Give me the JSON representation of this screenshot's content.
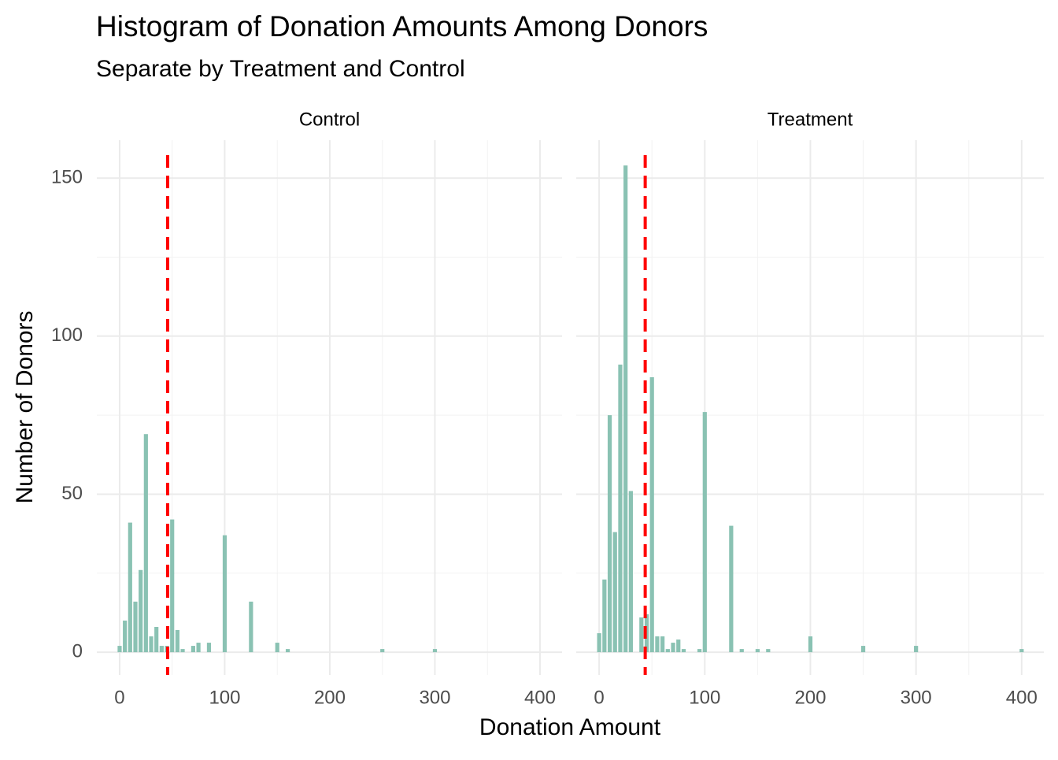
{
  "chart_data": {
    "type": "histogram",
    "title": "Histogram of Donation Amounts Among Donors",
    "subtitle": "Separate by Treatment and Control",
    "x_label": "Donation Amount",
    "y_label": "Number of Donors",
    "color": "#8ac2b3",
    "line_color": "#ff0000",
    "grid": true,
    "xlim": [
      -21.7,
      421
    ],
    "ylim": [
      -7.2,
      162
    ],
    "xticks": [
      0,
      100,
      200,
      300,
      400
    ],
    "yticks": [
      0,
      50,
      100,
      150
    ],
    "minor_xticks": [
      50,
      150,
      250,
      350
    ],
    "minor_yticks": [
      25,
      75,
      125
    ],
    "bins": [
      -2.5,
      2.5,
      7.5,
      12.5,
      17.5,
      22.5,
      27.5,
      32.5,
      37.5,
      42.5,
      47.5,
      52.5,
      57.5,
      62.5,
      67.5,
      72.5,
      77.5,
      82.5,
      87.5,
      92.5,
      97.5,
      102.5,
      107.5,
      112.5,
      117.5,
      122.5,
      127.5,
      132.5,
      137.5,
      142.5,
      147.5,
      152.5,
      157.5,
      162.5,
      167.5,
      172.5,
      177.5,
      182.5,
      187.5,
      192.5,
      197.5,
      202.5,
      207.5,
      212.5,
      217.5,
      222.5,
      227.5,
      232.5,
      237.5,
      242.5,
      247.5,
      252.5,
      257.5,
      262.5,
      267.5,
      272.5,
      277.5,
      282.5,
      287.5,
      292.5,
      297.5,
      302.5,
      307.5,
      312.5,
      317.5,
      322.5,
      327.5,
      332.5,
      337.5,
      342.5,
      347.5,
      352.5,
      357.5,
      362.5,
      367.5,
      372.5,
      377.5,
      382.5,
      387.5,
      392.5,
      397.5,
      402.5
    ],
    "panels": [
      {
        "name": "Control",
        "mean": 45.7,
        "counts": [
          2,
          10,
          41,
          16,
          26,
          69,
          5,
          8,
          2,
          2,
          42,
          7,
          1,
          0,
          2,
          3,
          0,
          3,
          0,
          0,
          37,
          0,
          0,
          0,
          0,
          16,
          0,
          0,
          0,
          0,
          3,
          0,
          1,
          0,
          0,
          0,
          0,
          0,
          0,
          0,
          0,
          0,
          0,
          0,
          0,
          0,
          0,
          0,
          0,
          0,
          1,
          0,
          0,
          0,
          0,
          0,
          0,
          0,
          0,
          0,
          1,
          0,
          0,
          0,
          0,
          0,
          0,
          0,
          0,
          0,
          0,
          0,
          0,
          0,
          0,
          0,
          0,
          0,
          0,
          0,
          0
        ]
      },
      {
        "name": "Treatment",
        "mean": 43.6,
        "counts": [
          6,
          23,
          75,
          38,
          91,
          154,
          51,
          0,
          11,
          12,
          87,
          5,
          5,
          1,
          3,
          4,
          1,
          0,
          0,
          1,
          76,
          0,
          0,
          0,
          0,
          40,
          0,
          1,
          0,
          0,
          1,
          0,
          1,
          0,
          0,
          0,
          0,
          0,
          0,
          0,
          5,
          0,
          0,
          0,
          0,
          0,
          0,
          0,
          0,
          0,
          2,
          0,
          0,
          0,
          0,
          0,
          0,
          0,
          0,
          0,
          2,
          0,
          0,
          0,
          0,
          0,
          0,
          0,
          0,
          0,
          0,
          0,
          0,
          0,
          0,
          0,
          0,
          0,
          0,
          0,
          1
        ]
      }
    ]
  }
}
